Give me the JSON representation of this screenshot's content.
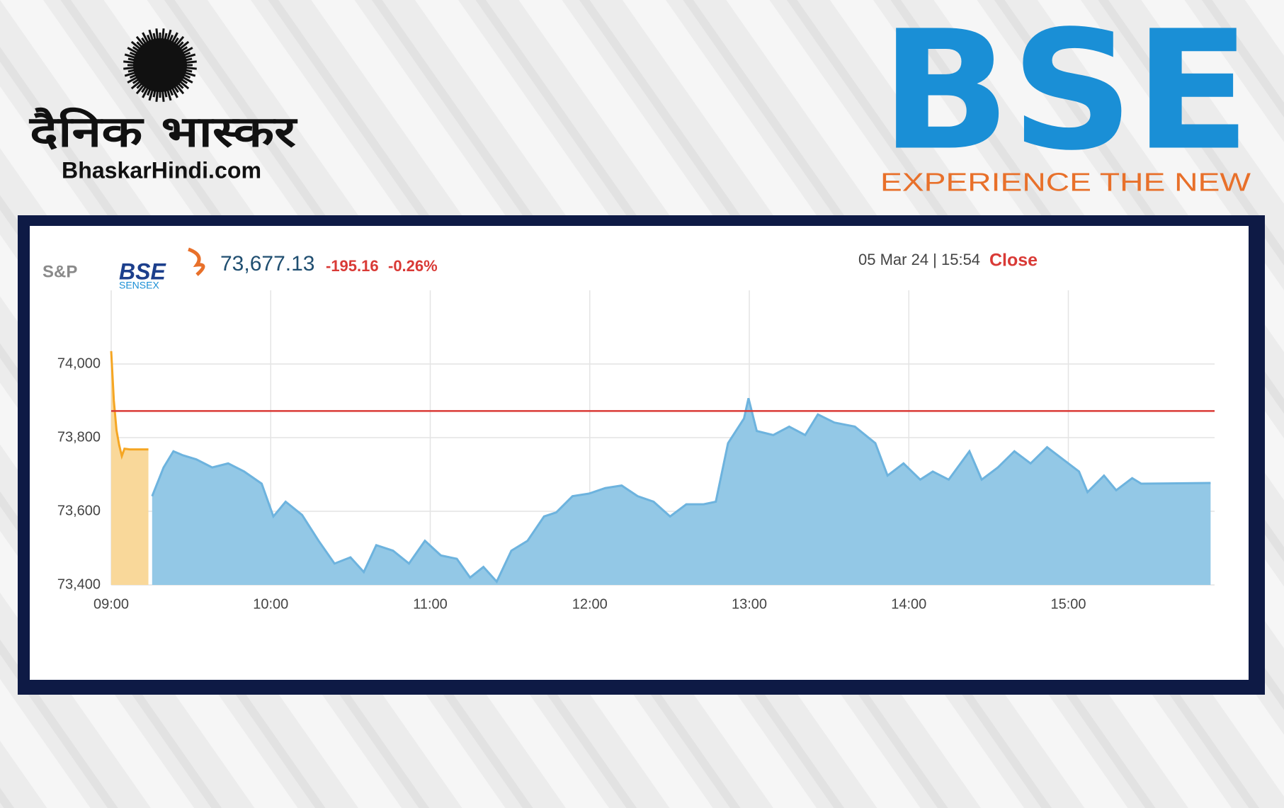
{
  "branding": {
    "hindi_name": "दैनिक भास्कर",
    "site": "BhaskarHindi.com",
    "bse": "BSE",
    "tagline": "EXPERIENCE THE NEW"
  },
  "index_logo": {
    "sp": "S&P",
    "bse": "BSE",
    "sensex": "SENSEX"
  },
  "quote": {
    "value": "73,677.13",
    "change": "-195.16",
    "change_pct": "-0.26%",
    "date_time": "05 Mar 24 | 15:54",
    "status": "Close"
  },
  "chart_data": {
    "type": "area",
    "xlim": [
      540,
      955
    ],
    "ylim": [
      73400,
      74200
    ],
    "xticks": [
      {
        "value": 540,
        "label": "09:00"
      },
      {
        "value": 600,
        "label": "10:00"
      },
      {
        "value": 660,
        "label": "11:00"
      },
      {
        "value": 720,
        "label": "12:00"
      },
      {
        "value": 780,
        "label": "13:00"
      },
      {
        "value": 840,
        "label": "14:00"
      },
      {
        "value": 900,
        "label": "15:00"
      }
    ],
    "yticks": [
      {
        "value": 73400,
        "label": "73,400"
      },
      {
        "value": 73600,
        "label": "73,600"
      },
      {
        "value": 73800,
        "label": "73,800"
      },
      {
        "value": 74000,
        "label": "74,000"
      }
    ],
    "grid": true,
    "reference_line": {
      "value": 73872.29,
      "color": "#d93a36"
    },
    "series": [
      {
        "color": "#f5a623",
        "fill": "#f9d89a",
        "x": [
          540,
          541,
          542,
          543,
          544,
          545,
          547,
          554
        ],
        "values": [
          74035,
          73900,
          73820,
          73780,
          73750,
          73770,
          73768,
          73768
        ]
      },
      {
        "color": "#6db3de",
        "fill": "#93c8e6",
        "x": [
          555.4,
          559.7,
          563.4,
          567,
          572,
          578,
          584,
          590,
          596.6,
          601,
          605.6,
          611.8,
          618,
          624,
          630,
          635,
          639.7,
          646,
          652,
          658,
          664,
          670,
          675,
          680,
          685,
          690.5,
          696.6,
          702.8,
          707.4,
          713.5,
          719.7,
          725.8,
          732,
          738,
          744,
          750.2,
          756.3,
          762.8,
          767.4,
          772,
          778,
          779.7,
          782.8,
          789,
          795,
          801,
          805.8,
          812,
          819.7,
          827.4,
          832,
          838,
          844.3,
          849,
          855,
          862.8,
          867.4,
          873.5,
          879.7,
          885.8,
          892,
          898,
          904,
          907.2,
          913.4,
          918,
          924,
          927.4,
          953.5
        ],
        "values": [
          73641,
          73719,
          73763,
          73752,
          73741,
          73719,
          73730,
          73708,
          73675,
          73586,
          73626,
          73590,
          73520,
          73458,
          73475,
          73435,
          73508,
          73493,
          73458,
          73520,
          73480,
          73471,
          73420,
          73449,
          73409,
          73493,
          73520,
          73586,
          73597,
          73641,
          73648,
          73663,
          73670,
          73641,
          73626,
          73586,
          73619,
          73619,
          73626,
          73785,
          73852,
          73907,
          73818,
          73807,
          73830,
          73807,
          73863,
          73841,
          73830,
          73785,
          73697,
          73730,
          73686,
          73708,
          73686,
          73763,
          73686,
          73719,
          73763,
          73730,
          73774,
          73741,
          73708,
          73652,
          73697,
          73657,
          73690,
          73675,
          73677
        ]
      }
    ]
  }
}
